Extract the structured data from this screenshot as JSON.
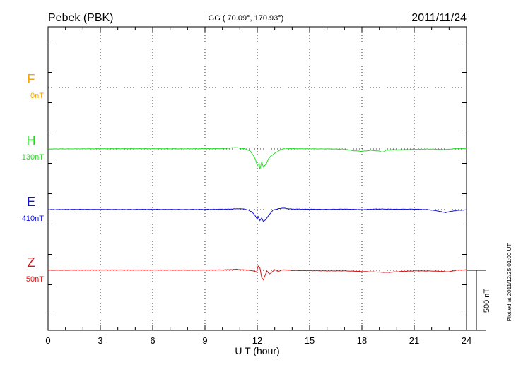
{
  "header": {
    "station": "Pebek (PBK)",
    "coords": "GG ( 70.09°, 170.93°)",
    "date": "2011/11/24"
  },
  "side_note": "Plotted at 2011/12/25 01:00 UT",
  "chart_data": {
    "type": "line",
    "xlabel": "U T (hour)",
    "xlim": [
      0,
      24
    ],
    "x_ticks": [
      "0",
      "3",
      "6",
      "9",
      "12",
      "15",
      "18",
      "21",
      "24"
    ],
    "scale_bar_label": "500 nT",
    "series": [
      {
        "name": "F",
        "offset_label": "0nT",
        "color": "#f5a800",
        "x": [],
        "y": []
      },
      {
        "name": "H",
        "offset_label": "130nT",
        "color": "#22dd22",
        "x": [
          0,
          2,
          4,
          6,
          8,
          10,
          10.8,
          11,
          11.3,
          11.6,
          11.8,
          11.9,
          12.0,
          12.1,
          12.15,
          12.25,
          12.35,
          12.5,
          12.65,
          12.8,
          12.9,
          13.0,
          13.3,
          13.6,
          14,
          15,
          16,
          17,
          17.5,
          18,
          18.5,
          19,
          19.2,
          19.4,
          19.8,
          20,
          21,
          22,
          22.5,
          23,
          23.5,
          24
        ],
        "y": [
          0,
          1,
          2,
          2,
          1,
          3,
          12,
          6,
          2,
          -20,
          -60,
          -90,
          -140,
          -120,
          -170,
          -110,
          -150,
          -130,
          -80,
          -55,
          -50,
          -35,
          -10,
          5,
          2,
          1,
          0,
          -2,
          -15,
          -20,
          -12,
          -18,
          -28,
          -10,
          -5,
          -8,
          -3,
          -1,
          -5,
          -3,
          5,
          2
        ]
      },
      {
        "name": "E",
        "offset_label": "410nT",
        "color": "#1010dd",
        "x": [
          0,
          2,
          4,
          6,
          8,
          9.5,
          10.5,
          11,
          11.3,
          11.5,
          11.7,
          11.85,
          12.0,
          12.05,
          12.15,
          12.25,
          12.35,
          12.5,
          12.7,
          12.9,
          13.2,
          13.5,
          14,
          15,
          16,
          17,
          18,
          19,
          20,
          21,
          21.8,
          22.3,
          22.8,
          23.2,
          23.6,
          24
        ],
        "y": [
          0,
          2,
          1,
          2,
          1,
          2,
          4,
          8,
          3,
          -5,
          -20,
          -45,
          -80,
          -60,
          -90,
          -70,
          -100,
          -80,
          -40,
          -5,
          8,
          12,
          4,
          3,
          2,
          4,
          0,
          5,
          3,
          4,
          0,
          -10,
          -25,
          -12,
          -5,
          -3
        ]
      },
      {
        "name": "Z",
        "offset_label": "50nT",
        "color": "#dd1111",
        "x": [
          0,
          2,
          4,
          6,
          8,
          10,
          10.8,
          11.2,
          11.5,
          11.8,
          11.95,
          12.05,
          12.15,
          12.25,
          12.35,
          12.45,
          12.55,
          12.7,
          12.85,
          13.0,
          13.2,
          13.5,
          14,
          15,
          16,
          17,
          18,
          19,
          19.5,
          20,
          21,
          22,
          23,
          23.5,
          24
        ],
        "y": [
          0,
          2,
          3,
          2,
          1,
          3,
          8,
          4,
          0,
          -5,
          -15,
          35,
          20,
          -60,
          -80,
          -40,
          -5,
          -30,
          -15,
          5,
          -10,
          5,
          -2,
          -3,
          -5,
          -5,
          -10,
          -15,
          -18,
          -12,
          -5,
          -6,
          -12,
          2,
          3
        ]
      }
    ]
  },
  "style": {
    "grid_color": "#000000",
    "axis_color": "#000000"
  }
}
